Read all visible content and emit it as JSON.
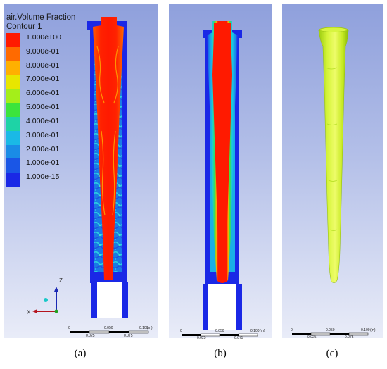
{
  "legend": {
    "title": "air.Volume Fraction",
    "subtitle": "Contour 1",
    "entries": [
      {
        "label": "1.000e+00",
        "color": "#ff1a00"
      },
      {
        "label": "9.000e-01",
        "color": "#ff6a00"
      },
      {
        "label": "8.000e-01",
        "color": "#ffb000"
      },
      {
        "label": "7.000e-01",
        "color": "#e8e600"
      },
      {
        "label": "6.000e-01",
        "color": "#a4ee1a"
      },
      {
        "label": "5.000e-01",
        "color": "#3ce43c"
      },
      {
        "label": "4.000e-01",
        "color": "#1ed3a6"
      },
      {
        "label": "3.000e-01",
        "color": "#1ab9e6"
      },
      {
        "label": "2.000e-01",
        "color": "#1a8ce6"
      },
      {
        "label": "1.000e-01",
        "color": "#1a56e6"
      },
      {
        "label": "1.000e-15",
        "color": "#1a28e6"
      }
    ]
  },
  "triad": {
    "z_label": "Z",
    "x_label": "X"
  },
  "scale_bars": {
    "top_labels": [
      "0",
      "0.050",
      "0.100",
      "(m)"
    ],
    "bottom_labels_a": [
      "0.025",
      "0.075"
    ],
    "bottom_labels": [
      "0.025",
      "0.075"
    ]
  },
  "captions": {
    "a": "(a)",
    "b": "(b)",
    "c": "(c)"
  },
  "colors": {
    "water": "#1a28e6",
    "air": "#ff1a00",
    "iso_surface": "#ccf22a"
  }
}
